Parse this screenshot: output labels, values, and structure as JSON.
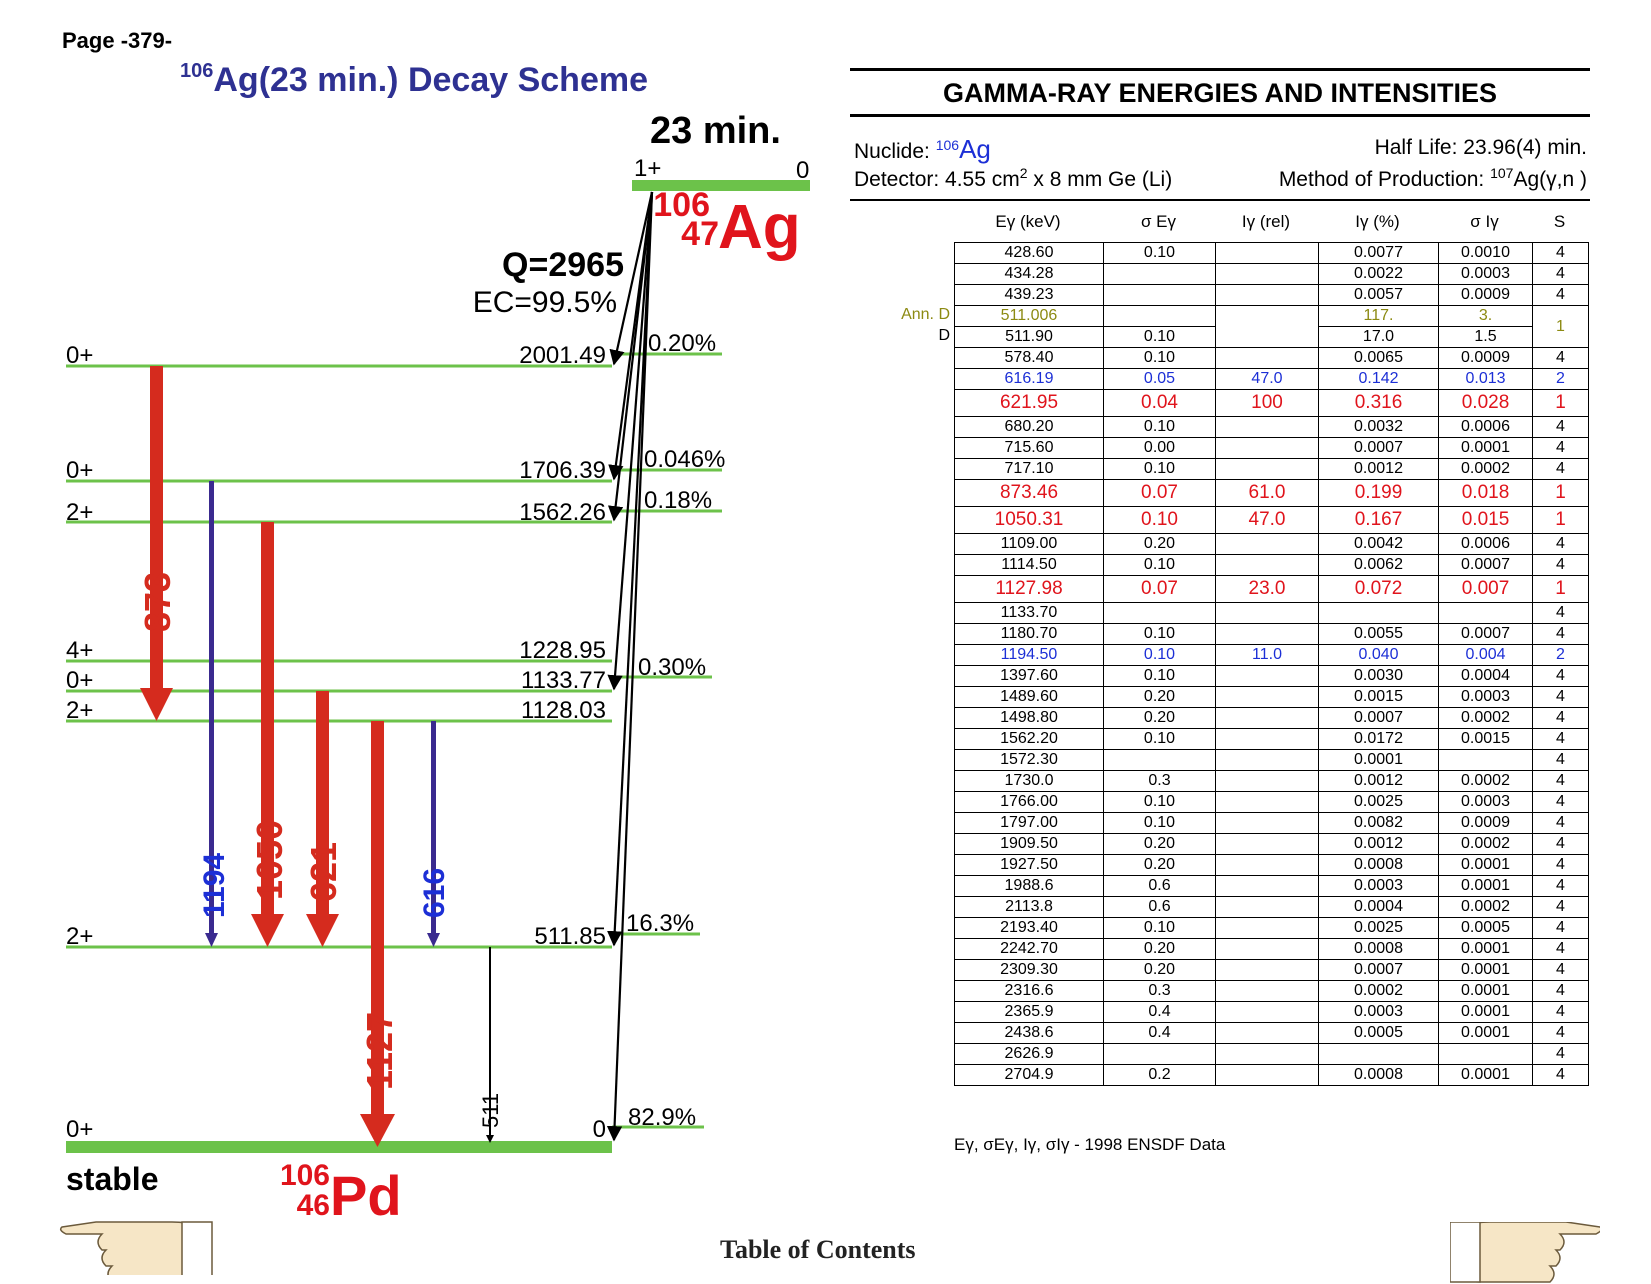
{
  "page_label": "Page -379-",
  "scheme": {
    "title_mass": "106",
    "title_text": "Ag(23 min.) Decay Scheme",
    "halflife_big": "23 min.",
    "parent_spin": "1+",
    "parent_energy": "0",
    "parent_mass": "106",
    "parent_z": "47",
    "parent_symbol": "Ag",
    "q_value": "Q=2965",
    "ec_branch": "EC=99.5%",
    "daughter_mass": "106",
    "daughter_z": "46",
    "daughter_symbol": "Pd",
    "stable_label": "stable",
    "levels": [
      {
        "spin": "0+",
        "energy": "2001.49",
        "feed": "0.20%"
      },
      {
        "spin": "0+",
        "energy": "1706.39",
        "feed": "0.046%"
      },
      {
        "spin": "2+",
        "energy": "1562.26",
        "feed": "0.18%"
      },
      {
        "spin": "4+",
        "energy": "1228.95",
        "feed": ""
      },
      {
        "spin": "0+",
        "energy": "1133.77",
        "feed": "0.30%"
      },
      {
        "spin": "2+",
        "energy": "1128.03",
        "feed": ""
      },
      {
        "spin": "2+",
        "energy": "511.85",
        "feed": "16.3%"
      },
      {
        "spin": "0+",
        "energy": "0",
        "feed": "82.9%"
      }
    ],
    "transitions": [
      {
        "label": "873",
        "color": "#d52b1e"
      },
      {
        "label": "1194",
        "color": "#1c2fd6"
      },
      {
        "label": "1050",
        "color": "#d52b1e"
      },
      {
        "label": "621",
        "color": "#d52b1e"
      },
      {
        "label": "1127",
        "color": "#d52b1e"
      },
      {
        "label": "616",
        "color": "#1c2fd6"
      },
      {
        "label": "511",
        "color": "#000000"
      }
    ]
  },
  "table": {
    "title": "GAMMA-RAY ENERGIES AND INTENSITIES",
    "nuclide_label": "Nuclide: ",
    "nuclide_mass": "106",
    "nuclide_symbol": "Ag",
    "half_life": "Half Life: 23.96(4) min.",
    "detector_prefix": "Detector: 4.55 cm",
    "detector_exp": "2",
    "detector_suffix": " x 8 mm Ge (Li)",
    "method_prefix": "Method of Production: ",
    "method_mass": "107",
    "method_suffix": "Ag(γ,n )",
    "columns": [
      "Eγ (keV)",
      "σ Eγ",
      "Iγ (rel)",
      "Iγ (%)",
      "σ Iγ",
      "S"
    ],
    "rows": [
      {
        "tag": "",
        "c": [
          "428.60",
          "0.10",
          "",
          "0.0077",
          "0.0010",
          "4"
        ]
      },
      {
        "tag": "",
        "c": [
          "434.28",
          "",
          "",
          "0.0022",
          "0.0003",
          "4"
        ]
      },
      {
        "tag": "",
        "c": [
          "439.23",
          "",
          "",
          "0.0057",
          "0.0009",
          "4"
        ]
      },
      {
        "tag": "Ann. D",
        "c": [
          "511.006",
          "",
          "",
          "117.",
          "3.",
          "1"
        ]
      },
      {
        "tag": "D",
        "c": [
          "511.90",
          "0.10",
          "",
          "17.0",
          "1.5",
          ""
        ]
      },
      {
        "tag": "",
        "c": [
          "578.40",
          "0.10",
          "",
          "0.0065",
          "0.0009",
          "4"
        ]
      },
      {
        "tag": "",
        "c": [
          "616.19",
          "0.05",
          "47.0",
          "0.142",
          "0.013",
          "2"
        ]
      },
      {
        "tag": "",
        "c": [
          "621.95",
          "0.04",
          "100",
          "0.316",
          "0.028",
          "1"
        ]
      },
      {
        "tag": "",
        "c": [
          "680.20",
          "0.10",
          "",
          "0.0032",
          "0.0006",
          "4"
        ]
      },
      {
        "tag": "",
        "c": [
          "715.60",
          "0.00",
          "",
          "0.0007",
          "0.0001",
          "4"
        ]
      },
      {
        "tag": "",
        "c": [
          "717.10",
          "0.10",
          "",
          "0.0012",
          "0.0002",
          "4"
        ]
      },
      {
        "tag": "",
        "c": [
          "873.46",
          "0.07",
          "61.0",
          "0.199",
          "0.018",
          "1"
        ]
      },
      {
        "tag": "",
        "c": [
          "1050.31",
          "0.10",
          "47.0",
          "0.167",
          "0.015",
          "1"
        ]
      },
      {
        "tag": "",
        "c": [
          "1109.00",
          "0.20",
          "",
          "0.0042",
          "0.0006",
          "4"
        ]
      },
      {
        "tag": "",
        "c": [
          "1114.50",
          "0.10",
          "",
          "0.0062",
          "0.0007",
          "4"
        ]
      },
      {
        "tag": "",
        "c": [
          "1127.98",
          "0.07",
          "23.0",
          "0.072",
          "0.007",
          "1"
        ]
      },
      {
        "tag": "",
        "c": [
          "1133.70",
          "",
          "",
          "",
          "",
          "4"
        ]
      },
      {
        "tag": "",
        "c": [
          "1180.70",
          "0.10",
          "",
          "0.0055",
          "0.0007",
          "4"
        ]
      },
      {
        "tag": "",
        "c": [
          "1194.50",
          "0.10",
          "11.0",
          "0.040",
          "0.004",
          "2"
        ]
      },
      {
        "tag": "",
        "c": [
          "1397.60",
          "0.10",
          "",
          "0.0030",
          "0.0004",
          "4"
        ]
      },
      {
        "tag": "",
        "c": [
          "1489.60",
          "0.20",
          "",
          "0.0015",
          "0.0003",
          "4"
        ]
      },
      {
        "tag": "",
        "c": [
          "1498.80",
          "0.20",
          "",
          "0.0007",
          "0.0002",
          "4"
        ]
      },
      {
        "tag": "",
        "c": [
          "1562.20",
          "0.10",
          "",
          "0.0172",
          "0.0015",
          "4"
        ]
      },
      {
        "tag": "",
        "c": [
          "1572.30",
          "",
          "",
          "0.0001",
          "",
          "4"
        ]
      },
      {
        "tag": "",
        "c": [
          "1730.0",
          "0.3",
          "",
          "0.0012",
          "0.0002",
          "4"
        ]
      },
      {
        "tag": "",
        "c": [
          "1766.00",
          "0.10",
          "",
          "0.0025",
          "0.0003",
          "4"
        ]
      },
      {
        "tag": "",
        "c": [
          "1797.00",
          "0.10",
          "",
          "0.0082",
          "0.0009",
          "4"
        ]
      },
      {
        "tag": "",
        "c": [
          "1909.50",
          "0.20",
          "",
          "0.0012",
          "0.0002",
          "4"
        ]
      },
      {
        "tag": "",
        "c": [
          "1927.50",
          "0.20",
          "",
          "0.0008",
          "0.0001",
          "4"
        ]
      },
      {
        "tag": "",
        "c": [
          "1988.6",
          "0.6",
          "",
          "0.0003",
          "0.0001",
          "4"
        ]
      },
      {
        "tag": "",
        "c": [
          "2113.8",
          "0.6",
          "",
          "0.0004",
          "0.0002",
          "4"
        ]
      },
      {
        "tag": "",
        "c": [
          "2193.40",
          "0.10",
          "",
          "0.0025",
          "0.0005",
          "4"
        ]
      },
      {
        "tag": "",
        "c": [
          "2242.70",
          "0.20",
          "",
          "0.0008",
          "0.0001",
          "4"
        ]
      },
      {
        "tag": "",
        "c": [
          "2309.30",
          "0.20",
          "",
          "0.0007",
          "0.0001",
          "4"
        ]
      },
      {
        "tag": "",
        "c": [
          "2316.6",
          "0.3",
          "",
          "0.0002",
          "0.0001",
          "4"
        ]
      },
      {
        "tag": "",
        "c": [
          "2365.9",
          "0.4",
          "",
          "0.0003",
          "0.0001",
          "4"
        ]
      },
      {
        "tag": "",
        "c": [
          "2438.6",
          "0.4",
          "",
          "0.0005",
          "0.0001",
          "4"
        ]
      },
      {
        "tag": "",
        "c": [
          "2626.9",
          "",
          "",
          "",
          "",
          "4"
        ]
      },
      {
        "tag": "",
        "c": [
          "2704.9",
          "0.2",
          "",
          "0.0008",
          "0.0001",
          "4"
        ]
      }
    ],
    "footnote": "Eγ, σEγ, Iγ, σIγ - 1998 ENSDF Data"
  },
  "toc_label": "Table of Contents",
  "nav": {
    "prev_icon": "pointing-hand-left-icon",
    "next_icon": "pointing-hand-right-icon"
  }
}
